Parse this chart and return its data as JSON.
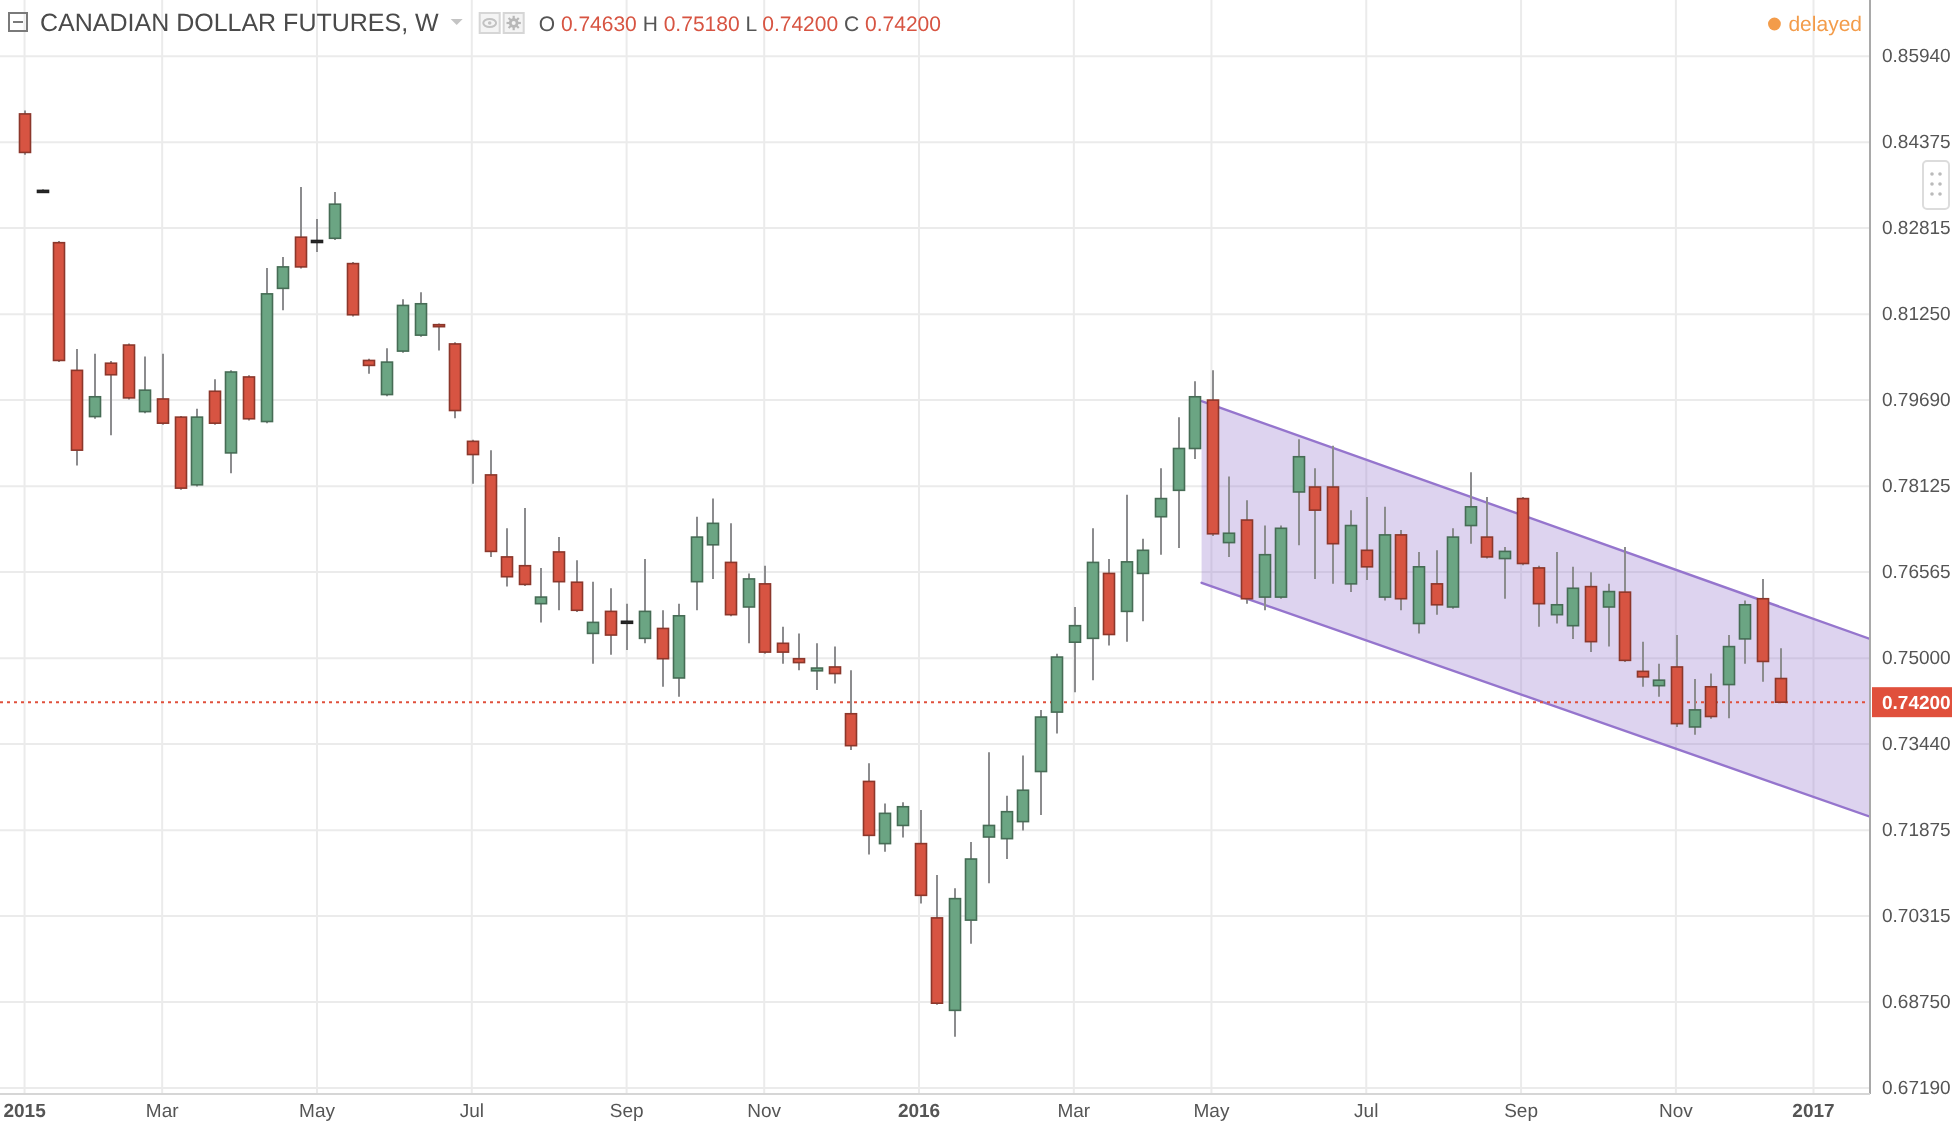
{
  "chart_data": {
    "type": "candlestick",
    "title": "CANADIAN DOLLAR FUTURES, W",
    "annotations": [
      "O 0.74630 H 0.75180 L 0.74200 C 0.74200",
      "delayed"
    ],
    "x": [
      "2015-01-05",
      "2015-01-12",
      "2015-01-19",
      "2015-01-26",
      "2015-02-02",
      "2015-02-09",
      "2015-02-16",
      "2015-02-23",
      "2015-03-02",
      "2015-03-09",
      "2015-03-16",
      "2015-03-23",
      "2015-03-30",
      "2015-04-06",
      "2015-04-13",
      "2015-04-20",
      "2015-04-27",
      "2015-05-04",
      "2015-05-11",
      "2015-05-18",
      "2015-05-25",
      "2015-06-01",
      "2015-06-08",
      "2015-06-15",
      "2015-06-22",
      "2015-06-29",
      "2015-07-06",
      "2015-07-13",
      "2015-07-20",
      "2015-07-27",
      "2015-08-03",
      "2015-08-10",
      "2015-08-17",
      "2015-08-24",
      "2015-08-31",
      "2015-09-07",
      "2015-09-14",
      "2015-09-21",
      "2015-09-28",
      "2015-10-05",
      "2015-10-12",
      "2015-10-19",
      "2015-10-26",
      "2015-11-02",
      "2015-11-09",
      "2015-11-16",
      "2015-11-23",
      "2015-11-30",
      "2015-12-07",
      "2015-12-14",
      "2015-12-21",
      "2015-12-28",
      "2016-01-04",
      "2016-01-11",
      "2016-01-18",
      "2016-01-25",
      "2016-02-01",
      "2016-02-08",
      "2016-02-15",
      "2016-02-22",
      "2016-02-29",
      "2016-03-07",
      "2016-03-14",
      "2016-03-21",
      "2016-03-28",
      "2016-04-04",
      "2016-04-11",
      "2016-04-18",
      "2016-04-25",
      "2016-05-02",
      "2016-05-09",
      "2016-05-16",
      "2016-05-23",
      "2016-05-30",
      "2016-06-06",
      "2016-06-13",
      "2016-06-20",
      "2016-06-27",
      "2016-07-04",
      "2016-07-11",
      "2016-07-18",
      "2016-07-25",
      "2016-08-01",
      "2016-08-08",
      "2016-08-15",
      "2016-08-22",
      "2016-08-29",
      "2016-09-05",
      "2016-09-12",
      "2016-09-19",
      "2016-09-26",
      "2016-10-03",
      "2016-10-10",
      "2016-10-17",
      "2016-10-24",
      "2016-10-31",
      "2016-11-07",
      "2016-11-14",
      "2016-11-21",
      "2016-11-28",
      "2016-12-05",
      "2016-12-12",
      "2016-12-19"
    ],
    "ohlc": [
      [
        0.8489,
        0.8495,
        0.8415,
        0.8419
      ],
      [
        0.835,
        0.8352,
        0.8347,
        0.835
      ],
      [
        0.8255,
        0.8258,
        0.8038,
        0.8041
      ],
      [
        0.8023,
        0.8062,
        0.785,
        0.7878
      ],
      [
        0.7939,
        0.8053,
        0.7935,
        0.7975
      ],
      [
        0.8036,
        0.804,
        0.7905,
        0.8015
      ],
      [
        0.8069,
        0.8072,
        0.797,
        0.7973
      ],
      [
        0.7948,
        0.8048,
        0.7945,
        0.7987
      ],
      [
        0.7971,
        0.8053,
        0.7924,
        0.7927
      ],
      [
        0.7938,
        0.794,
        0.7806,
        0.7809
      ],
      [
        0.7815,
        0.7953,
        0.7812,
        0.7938
      ],
      [
        0.7985,
        0.8007,
        0.7924,
        0.7927
      ],
      [
        0.7873,
        0.8023,
        0.7836,
        0.802
      ],
      [
        0.8011,
        0.8014,
        0.7932,
        0.7935
      ],
      [
        0.793,
        0.8209,
        0.7927,
        0.8162
      ],
      [
        0.8172,
        0.8229,
        0.8132,
        0.8211
      ],
      [
        0.8265,
        0.8356,
        0.8208,
        0.8211
      ],
      [
        0.8259,
        0.8298,
        0.8238,
        0.8259
      ],
      [
        0.8263,
        0.8347,
        0.826,
        0.8325
      ],
      [
        0.8217,
        0.822,
        0.8121,
        0.8124
      ],
      [
        0.8041,
        0.8044,
        0.8017,
        0.8032
      ],
      [
        0.7979,
        0.8063,
        0.7976,
        0.8038
      ],
      [
        0.8058,
        0.8152,
        0.8055,
        0.8141
      ],
      [
        0.8087,
        0.8165,
        0.8084,
        0.8144
      ],
      [
        0.8106,
        0.8108,
        0.8059,
        0.8105
      ],
      [
        0.8071,
        0.8074,
        0.7936,
        0.795
      ],
      [
        0.7894,
        0.7897,
        0.7817,
        0.787
      ],
      [
        0.7833,
        0.7878,
        0.7684,
        0.7694
      ],
      [
        0.7684,
        0.7736,
        0.763,
        0.7648
      ],
      [
        0.7668,
        0.7773,
        0.7631,
        0.7634
      ],
      [
        0.7599,
        0.7664,
        0.7565,
        0.7611
      ],
      [
        0.7693,
        0.772,
        0.7587,
        0.7639
      ],
      [
        0.7638,
        0.7678,
        0.7584,
        0.7587
      ],
      [
        0.7545,
        0.7639,
        0.749,
        0.7565
      ],
      [
        0.7585,
        0.7627,
        0.7506,
        0.7542
      ],
      [
        0.7566,
        0.7599,
        0.7515,
        0.7567
      ],
      [
        0.7536,
        0.768,
        0.7527,
        0.7585
      ],
      [
        0.7554,
        0.7587,
        0.7448,
        0.7499
      ],
      [
        0.7464,
        0.7599,
        0.743,
        0.7577
      ],
      [
        0.7639,
        0.7757,
        0.7587,
        0.772
      ],
      [
        0.7706,
        0.779,
        0.7644,
        0.7745
      ],
      [
        0.7674,
        0.7745,
        0.7576,
        0.7579
      ],
      [
        0.7593,
        0.7654,
        0.7527,
        0.7644
      ],
      [
        0.7635,
        0.7668,
        0.7508,
        0.7511
      ],
      [
        0.7527,
        0.7557,
        0.749,
        0.7511
      ],
      [
        0.7499,
        0.7545,
        0.7478,
        0.7492
      ],
      [
        0.7477,
        0.7527,
        0.7442,
        0.7482
      ],
      [
        0.7484,
        0.7521,
        0.7454,
        0.7472
      ],
      [
        0.7399,
        0.7478,
        0.7333,
        0.7341
      ],
      [
        0.7276,
        0.7309,
        0.7143,
        0.7178
      ],
      [
        0.7163,
        0.7236,
        0.7148,
        0.7218
      ],
      [
        0.7196,
        0.7238,
        0.7174,
        0.723
      ],
      [
        0.7163,
        0.7224,
        0.7054,
        0.7069
      ],
      [
        0.7028,
        0.7106,
        0.687,
        0.6873
      ],
      [
        0.686,
        0.7082,
        0.6812,
        0.7063
      ],
      [
        0.7024,
        0.7166,
        0.6981,
        0.7135
      ],
      [
        0.7175,
        0.7329,
        0.7091,
        0.7196
      ],
      [
        0.7172,
        0.725,
        0.7135,
        0.7221
      ],
      [
        0.7203,
        0.7323,
        0.7187,
        0.726
      ],
      [
        0.7294,
        0.7406,
        0.7215,
        0.7393
      ],
      [
        0.7402,
        0.7508,
        0.7363,
        0.7502
      ],
      [
        0.7529,
        0.7593,
        0.7438,
        0.7559
      ],
      [
        0.7536,
        0.7736,
        0.746,
        0.7674
      ],
      [
        0.7654,
        0.768,
        0.7523,
        0.7543
      ],
      [
        0.7585,
        0.7797,
        0.753,
        0.7675
      ],
      [
        0.7654,
        0.7717,
        0.7567,
        0.7696
      ],
      [
        0.7757,
        0.7845,
        0.7688,
        0.779
      ],
      [
        0.7805,
        0.7938,
        0.77,
        0.7881
      ],
      [
        0.7881,
        0.8003,
        0.7862,
        0.7975
      ],
      [
        0.7969,
        0.8023,
        0.7722,
        0.7726
      ],
      [
        0.771,
        0.783,
        0.7684,
        0.7727
      ],
      [
        0.7751,
        0.7787,
        0.7599,
        0.7608
      ],
      [
        0.7611,
        0.7741,
        0.7587,
        0.7688
      ],
      [
        0.7611,
        0.7741,
        0.7608,
        0.7736
      ],
      [
        0.7802,
        0.7898,
        0.7705,
        0.7866
      ],
      [
        0.7811,
        0.7845,
        0.7644,
        0.7769
      ],
      [
        0.7811,
        0.7886,
        0.7635,
        0.7708
      ],
      [
        0.7635,
        0.7769,
        0.762,
        0.7741
      ],
      [
        0.7696,
        0.7793,
        0.7642,
        0.7666
      ],
      [
        0.7611,
        0.7775,
        0.7605,
        0.7724
      ],
      [
        0.7724,
        0.7733,
        0.7587,
        0.7608
      ],
      [
        0.7563,
        0.7693,
        0.7545,
        0.7666
      ],
      [
        0.7635,
        0.7696,
        0.7579,
        0.7597
      ],
      [
        0.7593,
        0.7736,
        0.759,
        0.772
      ],
      [
        0.7741,
        0.7838,
        0.7708,
        0.7775
      ],
      [
        0.772,
        0.7793,
        0.7681,
        0.7684
      ],
      [
        0.7681,
        0.7702,
        0.7608,
        0.7694
      ],
      [
        0.779,
        0.7793,
        0.7669,
        0.7672
      ],
      [
        0.7664,
        0.7668,
        0.7557,
        0.7599
      ],
      [
        0.7579,
        0.7693,
        0.7563,
        0.7597
      ],
      [
        0.7559,
        0.7666,
        0.7535,
        0.7627
      ],
      [
        0.763,
        0.7656,
        0.7511,
        0.753
      ],
      [
        0.7593,
        0.7635,
        0.7521,
        0.7621
      ],
      [
        0.762,
        0.7702,
        0.7493,
        0.7496
      ],
      [
        0.7476,
        0.753,
        0.7448,
        0.7466
      ],
      [
        0.745,
        0.749,
        0.743,
        0.746
      ],
      [
        0.7484,
        0.7542,
        0.7375,
        0.7381
      ],
      [
        0.7375,
        0.7462,
        0.7361,
        0.7406
      ],
      [
        0.7448,
        0.7472,
        0.739,
        0.7394
      ],
      [
        0.7452,
        0.7542,
        0.7391,
        0.7521
      ],
      [
        0.7535,
        0.7605,
        0.749,
        0.7597
      ],
      [
        0.7608,
        0.7644,
        0.7457,
        0.7494
      ],
      [
        0.7463,
        0.7518,
        0.742,
        0.742
      ]
    ],
    "colors": [
      "#d75442",
      "#333333",
      "#d75442",
      "#d75442",
      "#6ba583",
      "#d75442",
      "#d75442",
      "#6ba583",
      "#d75442",
      "#d75442",
      "#6ba583",
      "#d75442",
      "#6ba583",
      "#d75442",
      "#6ba583",
      "#6ba583",
      "#d75442",
      "#333333",
      "#6ba583",
      "#d75442",
      "#d75442",
      "#6ba583",
      "#6ba583",
      "#6ba583",
      "#d75442",
      "#d75442",
      "#d75442",
      "#d75442",
      "#d75442",
      "#d75442",
      "#6ba583",
      "#d75442",
      "#d75442",
      "#6ba583",
      "#d75442",
      "#333333",
      "#6ba583",
      "#d75442",
      "#6ba583",
      "#6ba583",
      "#6ba583",
      "#d75442",
      "#6ba583",
      "#d75442",
      "#d75442",
      "#d75442",
      "#6ba583",
      "#d75442",
      "#d75442",
      "#d75442",
      "#6ba583",
      "#6ba583",
      "#d75442",
      "#d75442",
      "#6ba583",
      "#6ba583",
      "#6ba583",
      "#6ba583",
      "#6ba583",
      "#6ba583",
      "#6ba583",
      "#6ba583",
      "#6ba583",
      "#d75442",
      "#6ba583",
      "#6ba583",
      "#6ba583",
      "#6ba583",
      "#6ba583",
      "#d75442",
      "#6ba583",
      "#d75442",
      "#6ba583",
      "#6ba583",
      "#6ba583",
      "#d75442",
      "#d75442",
      "#6ba583",
      "#d75442",
      "#6ba583",
      "#d75442",
      "#6ba583",
      "#d75442",
      "#6ba583",
      "#6ba583",
      "#d75442",
      "#6ba583",
      "#d75442",
      "#d75442",
      "#6ba583",
      "#6ba583",
      "#d75442",
      "#6ba583",
      "#d75442",
      "#d75442",
      "#6ba583",
      "#d75442",
      "#6ba583",
      "#d75442",
      "#6ba583",
      "#6ba583",
      "#d75442",
      "#d75442"
    ],
    "series": [
      {
        "type": "line",
        "color": "#9575cd",
        "x": [
          "2016-04-28",
          "2017-01-25"
        ],
        "values": [
          0.7967,
          0.7535
        ],
        "lower": [
          0.7637,
          0.7212
        ],
        "upper": [
          0.7967,
          0.7535
        ]
      },
      {
        "type": "line",
        "color": "#9575cd",
        "x": [
          "2016-04-28",
          "2017-01-25"
        ],
        "values": [
          0.7637,
          0.7212
        ]
      }
    ],
    "xlim": [
      "2014-12-26",
      "2017-01-25"
    ],
    "ylim": [
      0.6708,
      0.8696
    ],
    "xticks": [
      {
        "value": "2015-01-05",
        "label": "2015"
      },
      {
        "value": "2015-03-02",
        "label": "Mar"
      },
      {
        "value": "2015-05-04",
        "label": "May"
      },
      {
        "value": "2015-07-06",
        "label": "Jul"
      },
      {
        "value": "2015-09-07",
        "label": "Sep"
      },
      {
        "value": "2015-11-02",
        "label": "Nov"
      },
      {
        "value": "2016-01-04",
        "label": "2016"
      },
      {
        "value": "2016-03-07",
        "label": "Mar"
      },
      {
        "value": "2016-05-02",
        "label": "May"
      },
      {
        "value": "2016-07-04",
        "label": "Jul"
      },
      {
        "value": "2016-09-05",
        "label": "Sep"
      },
      {
        "value": "2016-11-07",
        "label": "Nov"
      },
      {
        "value": "2017-01-02",
        "label": "2017"
      }
    ],
    "yticks": [
      {
        "value": 0.6719,
        "label": "0.67190"
      },
      {
        "value": 0.6875,
        "label": "0.68750"
      },
      0.70315,
      0.71875,
      {
        "value": 0.7344,
        "label": "0.73440"
      },
      {
        "value": 0.75,
        "label": "0.75000"
      },
      0.76565,
      0.78125,
      {
        "value": 0.7969,
        "label": "0.79690"
      },
      {
        "value": 0.8125,
        "label": "0.81250"
      },
      0.82815,
      0.84375,
      {
        "value": 0.8594,
        "label": "0.85940"
      }
    ],
    "ref_lines": [
      {
        "axis": "y",
        "value": 0.742,
        "label": "0.74200",
        "color": "#e0503c",
        "line_style": "dotted"
      }
    ],
    "grid": true
  }
}
